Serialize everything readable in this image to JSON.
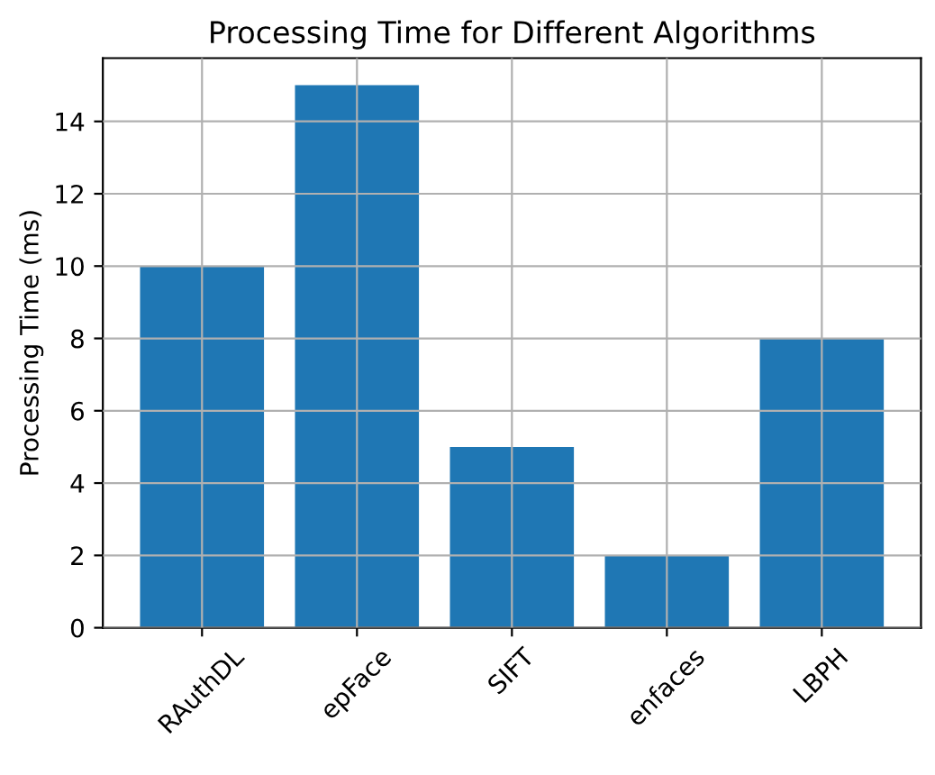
{
  "chart_data": {
    "type": "bar",
    "title": "Processing Time for Different Algorithms",
    "ylabel": "Processing Time (ms)",
    "categories": [
      "RAuthDL",
      "epFace",
      "SIFT",
      "enfaces",
      "LBPH"
    ],
    "values": [
      10,
      15,
      5,
      2,
      8
    ],
    "color": "#1f77b4",
    "ylim": [
      0,
      15.75
    ],
    "yticks": [
      0,
      2,
      4,
      6,
      8,
      10,
      12,
      14
    ],
    "grid": true
  }
}
